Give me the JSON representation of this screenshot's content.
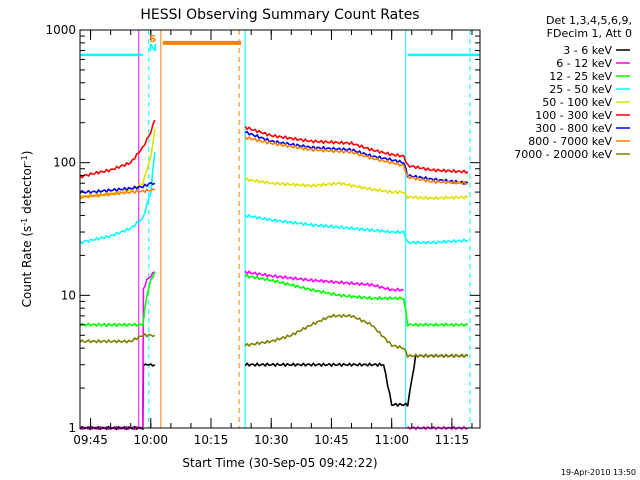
{
  "chart_data": {
    "type": "line",
    "title": "HESSI Observing Summary Count Rates",
    "xlabel": "Start Time (30-Sep-05 09:42:22)",
    "ylabel": "Count Rate (s-1 detector-1)",
    "ylabel_parts": {
      "pre": "Count Rate (s",
      "sup1": "-1",
      "mid": " detector",
      "sup2": "-1",
      "post": ")"
    },
    "y_scale": "log",
    "ylim": [
      1,
      1000
    ],
    "xlim": [
      "09:42:22",
      "11:22:00"
    ],
    "y_ticks": [
      {
        "value": 1,
        "label": "1"
      },
      {
        "value": 10,
        "label": "10"
      },
      {
        "value": 100,
        "label": "100"
      },
      {
        "value": 1000,
        "label": "1000"
      }
    ],
    "x_ticks": [
      {
        "time": "09:45",
        "label": "09:45"
      },
      {
        "time": "10:00",
        "label": "10:00"
      },
      {
        "time": "10:15",
        "label": "10:15"
      },
      {
        "time": "10:30",
        "label": "10:30"
      },
      {
        "time": "10:45",
        "label": "10:45"
      },
      {
        "time": "11:00",
        "label": "11:00"
      },
      {
        "time": "11:15",
        "label": "11:15"
      }
    ],
    "legend_header": [
      "Det 1,3,4,5,6,9,",
      "FDecim 1, Att 0"
    ],
    "legend_position": "top-right",
    "series": [
      {
        "name": "3 - 6 keV",
        "color": "#000000",
        "segments": [
          {
            "x": [
              "09:42:22",
              "09:58:00",
              "09:58:10",
              "10:00:00",
              "10:01:00"
            ],
            "y": [
              1,
              1,
              3,
              3,
              3
            ]
          },
          {
            "x": [
              "10:23:30",
              "10:30:00",
              "10:40:00",
              "10:50:00",
              "10:55:00",
              "10:58:00",
              "11:00:00",
              "11:02:00",
              "11:04:00",
              "11:06:00",
              "11:10:00",
              "11:16:00",
              "11:19:00"
            ],
            "y": [
              3,
              3,
              3,
              3,
              3,
              3,
              1.5,
              1.5,
              1.5,
              3.5,
              3.5,
              3.5,
              3.5
            ]
          }
        ]
      },
      {
        "name": "6 - 12 keV",
        "color": "#ff00ff",
        "segments": [
          {
            "x": [
              "09:42:22",
              "09:58:00",
              "09:58:10",
              "09:59:00",
              "10:00:00",
              "10:01:00"
            ],
            "y": [
              1,
              1,
              11,
              13,
              14,
              15
            ]
          },
          {
            "x": [
              "10:23:30",
              "10:30:00",
              "10:40:00",
              "10:47:00",
              "10:55:00",
              "11:00:00",
              "11:03:00"
            ],
            "y": [
              15,
              14,
              13,
              12.5,
              12,
              11,
              11
            ]
          },
          {
            "x": [
              "11:04:00",
              "11:19:00"
            ],
            "y": [
              1,
              1
            ]
          }
        ]
      },
      {
        "name": "12 - 25 keV",
        "color": "#00ff00",
        "segments": [
          {
            "x": [
              "09:42:22",
              "09:45:00",
              "09:50:00",
              "09:55:00",
              "09:58:00",
              "09:59:00",
              "10:00:00",
              "10:01:00"
            ],
            "y": [
              6,
              6,
              6,
              6,
              6,
              10,
              13,
              15
            ]
          },
          {
            "x": [
              "10:23:30",
              "10:30:00",
              "10:40:00",
              "10:47:00",
              "10:55:00",
              "11:00:00",
              "11:03:00",
              "11:04:00",
              "11:10:00",
              "11:19:00"
            ],
            "y": [
              14,
              13,
              11,
              10,
              9.5,
              9.5,
              9.5,
              6,
              6,
              6
            ]
          }
        ]
      },
      {
        "name": "25 - 50 keV",
        "color": "#00ffff",
        "segments": [
          {
            "x": [
              "09:42:22",
              "09:45:00",
              "09:50:00",
              "09:55:00",
              "09:58:00",
              "10:00:00",
              "10:01:00"
            ],
            "y": [
              25,
              26,
              28,
              32,
              38,
              60,
              120
            ]
          },
          {
            "x": [
              "10:23:30",
              "10:30:00",
              "10:40:00",
              "10:50:00",
              "10:55:00",
              "11:00:00",
              "11:03:00",
              "11:04:00",
              "11:10:00",
              "11:19:00"
            ],
            "y": [
              40,
              37,
              34,
              32,
              31,
              30,
              30,
              25,
              25,
              26
            ]
          }
        ]
      },
      {
        "name": "50 - 100 keV",
        "color": "#e0e000",
        "segments": [
          {
            "x": [
              "09:42:22",
              "09:45:00",
              "09:50:00",
              "09:55:00",
              "09:58:00",
              "10:00:00",
              "10:01:00"
            ],
            "y": [
              55,
              56,
              58,
              62,
              70,
              110,
              180
            ]
          },
          {
            "x": [
              "10:23:30",
              "10:30:00",
              "10:40:00",
              "10:47:00",
              "10:55:00",
              "11:00:00",
              "11:03:00",
              "11:04:00",
              "11:10:00",
              "11:19:00"
            ],
            "y": [
              75,
              70,
              67,
              70,
              63,
              60,
              60,
              55,
              54,
              55
            ]
          }
        ]
      },
      {
        "name": "100 - 300 keV",
        "color": "#ff0000",
        "segments": [
          {
            "x": [
              "09:42:22",
              "09:45:00",
              "09:50:00",
              "09:55:00",
              "09:58:00",
              "10:00:00",
              "10:01:00"
            ],
            "y": [
              78,
              82,
              88,
              100,
              130,
              170,
              210
            ]
          },
          {
            "x": [
              "10:23:30",
              "10:30:00",
              "10:40:00",
              "10:50:00",
              "10:55:00",
              "11:00:00",
              "11:03:00",
              "11:04:00",
              "11:10:00",
              "11:19:00"
            ],
            "y": [
              185,
              160,
              145,
              140,
              125,
              115,
              112,
              95,
              88,
              85
            ]
          }
        ]
      },
      {
        "name": "300 - 800 keV",
        "color": "#0000ff",
        "segments": [
          {
            "x": [
              "09:42:22",
              "09:45:00",
              "09:50:00",
              "09:55:00",
              "09:58:00",
              "10:00:00",
              "10:01:00"
            ],
            "y": [
              60,
              60,
              62,
              64,
              66,
              70,
              70
            ]
          },
          {
            "x": [
              "10:23:30",
              "10:30:00",
              "10:40:00",
              "10:50:00",
              "10:55:00",
              "11:00:00",
              "11:03:00",
              "11:04:00",
              "11:10:00",
              "11:19:00"
            ],
            "y": [
              170,
              145,
              130,
              125,
              112,
              105,
              100,
              80,
              75,
              70
            ]
          }
        ]
      },
      {
        "name": "800 - 7000 keV",
        "color": "#ff8000",
        "segments": [
          {
            "x": [
              "09:42:22",
              "09:45:00",
              "09:50:00",
              "09:55:00",
              "09:58:00",
              "10:00:00",
              "10:01:00"
            ],
            "y": [
              55,
              56,
              58,
              60,
              61,
              62,
              62
            ]
          },
          {
            "x": [
              "10:23:30",
              "10:30:00",
              "10:40:00",
              "10:50:00",
              "10:55:00",
              "11:00:00",
              "11:03:00",
              "11:04:00",
              "11:10:00",
              "11:19:00"
            ],
            "y": [
              155,
              140,
              125,
              120,
              108,
              100,
              95,
              78,
              72,
              70
            ]
          }
        ]
      },
      {
        "name": "7000 - 20000 keV",
        "color": "#808000",
        "segments": [
          {
            "x": [
              "09:42:22",
              "09:45:00",
              "09:50:00",
              "09:55:00",
              "09:58:00",
              "10:00:00",
              "10:01:00"
            ],
            "y": [
              4.5,
              4.5,
              4.5,
              4.5,
              5,
              5,
              5
            ]
          },
          {
            "x": [
              "10:23:30",
              "10:30:00",
              "10:35:00",
              "10:40:00",
              "10:45:00",
              "10:50:00",
              "10:55:00",
              "11:00:00",
              "11:03:00",
              "11:04:00",
              "11:10:00",
              "11:19:00"
            ],
            "y": [
              4.2,
              4.5,
              5,
              6,
              7,
              7,
              6,
              4.2,
              4,
              3.5,
              3.5,
              3.5
            ]
          }
        ]
      }
    ],
    "annotations": [
      {
        "text": "S",
        "time": "10:00:30",
        "color": "#ff8000"
      },
      {
        "text": "N",
        "time": "10:00:30",
        "color": "#00ffff"
      }
    ],
    "saturation_bar": {
      "from": "10:03:00",
      "to": "10:22:30",
      "y": 800,
      "color": "#ff8000"
    },
    "saa_bar": [
      {
        "from": "09:42:22",
        "to": "09:58:00",
        "y": 650,
        "color": "#00ffff"
      },
      {
        "from": "11:04:00",
        "to": "11:22:00",
        "y": 650,
        "color": "#00ffff"
      }
    ],
    "vertical_markers": [
      {
        "time": "09:57:00",
        "color": "#ff00ff",
        "style": "solid"
      },
      {
        "time": "09:59:30",
        "color": "#00ffff",
        "style": "dashed"
      },
      {
        "time": "10:02:30",
        "color": "#ff8000",
        "style": "solid"
      },
      {
        "time": "10:22:00",
        "color": "#ff8000",
        "style": "dashed"
      },
      {
        "time": "10:23:30",
        "color": "#00ffff",
        "style": "solid"
      },
      {
        "time": "11:03:30",
        "color": "#00ffff",
        "style": "solid"
      },
      {
        "time": "11:19:30",
        "color": "#00ffff",
        "style": "dashed"
      }
    ],
    "grid": false
  },
  "footer": {
    "timestamp": "19-Apr-2010 13:50"
  }
}
